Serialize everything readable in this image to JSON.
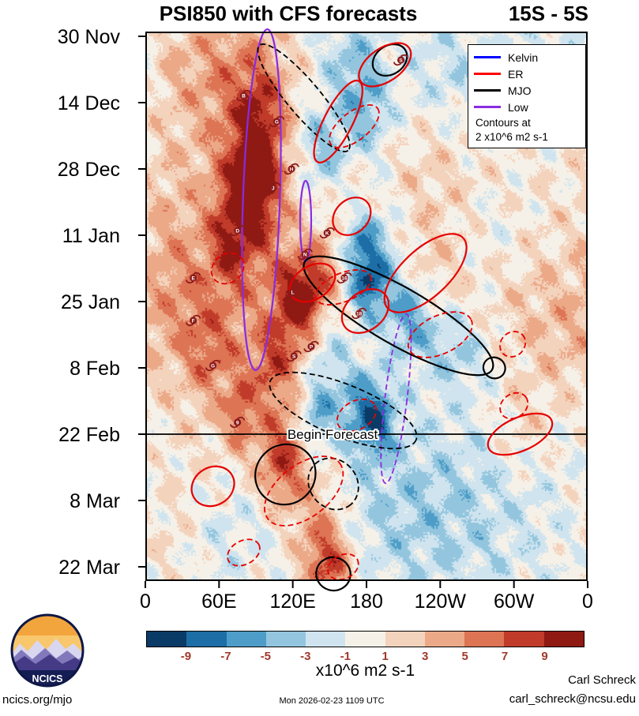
{
  "footer": {
    "website": "ncics.org/mjo",
    "timestamp": "Mon 2026-02-23 1109 UTC",
    "author": "Carl Schreck",
    "email": "carl_schreck@ncsu.edu"
  },
  "logo": {
    "text": "NCICS"
  },
  "chart_data": {
    "type": "heatmap",
    "title": "PSI850 with CFS forecasts",
    "subtitle": "15S - 5S",
    "x_axis": {
      "ticks": [
        "0",
        "60E",
        "120E",
        "180",
        "120W",
        "60W",
        "0"
      ],
      "tick_lons": [
        0,
        60,
        120,
        180,
        240,
        300,
        360
      ],
      "lon_range": [
        0,
        360
      ]
    },
    "y_axis": {
      "ticks": [
        "30 Nov",
        "14 Dec",
        "28 Dec",
        "11 Jan",
        "25 Jan",
        "8 Feb",
        "22 Feb",
        "8 Mar",
        "22 Mar"
      ],
      "tick_days": [
        0,
        14,
        28,
        42,
        56,
        70,
        84,
        98,
        112
      ],
      "day_range": [
        -1,
        115
      ]
    },
    "legend": {
      "items": [
        {
          "label": "Kelvin",
          "color": "#0000ff"
        },
        {
          "label": "ER",
          "color": "#ff0000"
        },
        {
          "label": "MJO",
          "color": "#000000"
        },
        {
          "label": "Low",
          "color": "#8a2be2"
        }
      ],
      "note_line1": "Contours at",
      "note_line2": "2 x10^6 m2 s-1"
    },
    "colorbar": {
      "levels": [
        -9,
        -7,
        -5,
        -3,
        -1,
        1,
        3,
        5,
        7,
        9
      ],
      "tick_labels": [
        "-9",
        "-7",
        "-5",
        "-3",
        "-1",
        "1",
        "3",
        "5",
        "7",
        "9"
      ],
      "tick_color": "#a0392b",
      "colors": [
        "#0a3b66",
        "#1d6ea6",
        "#4e9dc8",
        "#93c6de",
        "#cfe4ef",
        "#f6f1e8",
        "#f4d3bd",
        "#eba988",
        "#dd7454",
        "#c13b2a",
        "#8f1913"
      ],
      "label": "x10^6 m2 s-1"
    },
    "forecast_line": {
      "day": 84,
      "label": "Begin Forecast"
    },
    "contour_colors": {
      "red": "#e60000",
      "black": "#000000",
      "purple": "#8a2be2",
      "blue": "#0000ff"
    },
    "contour_names": {
      "red": "er-contour",
      "black": "mjo-contour",
      "purple": "low-contour",
      "blue": "kelvin-contour"
    },
    "contour_overlays": [
      {
        "c": "purple",
        "s": "solid",
        "lon": 94.5,
        "day": 34.5,
        "rlon": 15,
        "rday": 36,
        "rot": 2
      },
      {
        "c": "purple",
        "s": "solid",
        "lon": 130.5,
        "day": 39,
        "rlon": 4.5,
        "rday": 8.5,
        "rot": 0
      },
      {
        "c": "purple",
        "s": "dashed",
        "lon": 204,
        "day": 76.5,
        "rlon": 9,
        "rday": 18,
        "rot": 7
      },
      {
        "c": "black",
        "s": "dashed",
        "lon": 129,
        "day": 13,
        "rlon": 56,
        "rday": 3.5,
        "rot": 50
      },
      {
        "c": "black",
        "s": "solid",
        "lon": 206,
        "day": 59,
        "rlon": 88,
        "rday": 6,
        "rot": 30
      },
      {
        "c": "black",
        "s": "dashed",
        "lon": 161,
        "day": 79,
        "rlon": 64,
        "rday": 5.5,
        "rot": 22
      },
      {
        "c": "black",
        "s": "solid",
        "lon": 284,
        "day": 70,
        "rlon": 9,
        "rday": 2.2,
        "rot": 25
      },
      {
        "c": "black",
        "s": "solid",
        "lon": 114,
        "day": 92.5,
        "rlon": 24,
        "rday": 6.5,
        "rot": 45
      },
      {
        "c": "black",
        "s": "dashed",
        "lon": 153,
        "day": 94.5,
        "rlon": 22,
        "rday": 5,
        "rot": 50
      },
      {
        "c": "black",
        "s": "solid",
        "lon": 153,
        "day": 113.5,
        "rlon": 14,
        "rday": 3.5,
        "rot": 15
      },
      {
        "c": "black",
        "s": "solid",
        "lon": 199,
        "day": 5,
        "rlon": 15,
        "rday": 3,
        "rot": -35
      },
      {
        "c": "red",
        "s": "solid",
        "lon": 195,
        "day": 6,
        "rlon": 24,
        "rday": 3.5,
        "rot": -35
      },
      {
        "c": "red",
        "s": "solid",
        "lon": 157,
        "day": 18,
        "rlon": 37,
        "rday": 3,
        "rot": -63
      },
      {
        "c": "red",
        "s": "dashed",
        "lon": 170,
        "day": 19,
        "rlon": 24,
        "rday": 3,
        "rot": -38
      },
      {
        "c": "red",
        "s": "solid",
        "lon": 168,
        "day": 38,
        "rlon": 17,
        "rday": 3.5,
        "rot": -44
      },
      {
        "c": "red",
        "s": "dashed",
        "lon": 67,
        "day": 49,
        "rlon": 14,
        "rday": 3,
        "rot": -37
      },
      {
        "c": "red",
        "s": "solid",
        "lon": 136,
        "day": 52,
        "rlon": 20,
        "rday": 3.5,
        "rot": -32
      },
      {
        "c": "red",
        "s": "dashed",
        "lon": 161,
        "day": 53,
        "rlon": 24,
        "rday": 3,
        "rot": -23
      },
      {
        "c": "red",
        "s": "solid",
        "lon": 228,
        "day": 50,
        "rlon": 42,
        "rday": 5,
        "rot": -43
      },
      {
        "c": "red",
        "s": "solid",
        "lon": 179,
        "day": 58,
        "rlon": 21,
        "rday": 4,
        "rot": -39
      },
      {
        "c": "red",
        "s": "dashed",
        "lon": 240,
        "day": 63,
        "rlon": 28,
        "rday": 4,
        "rot": -26
      },
      {
        "c": "red",
        "s": "dashed",
        "lon": 299,
        "day": 65,
        "rlon": 11,
        "rday": 2.5,
        "rot": -44
      },
      {
        "c": "red",
        "s": "dashed",
        "lon": 300,
        "day": 78,
        "rlon": 12,
        "rday": 2.5,
        "rot": -35
      },
      {
        "c": "red",
        "s": "solid",
        "lon": 305,
        "day": 84,
        "rlon": 28,
        "rday": 3.5,
        "rot": -24
      },
      {
        "c": "red",
        "s": "dashed",
        "lon": 172,
        "day": 80,
        "rlon": 17,
        "rday": 3,
        "rot": -29
      },
      {
        "c": "red",
        "s": "solid",
        "lon": 55,
        "day": 95,
        "rlon": 18,
        "rday": 4,
        "rot": -32
      },
      {
        "c": "red",
        "s": "dashed",
        "lon": 129,
        "day": 96,
        "rlon": 37,
        "rday": 5.5,
        "rot": -38
      },
      {
        "c": "red",
        "s": "dashed",
        "lon": 80,
        "day": 109,
        "rlon": 14,
        "rday": 2.5,
        "rot": -28
      },
      {
        "c": "red",
        "s": "dashed",
        "lon": 161,
        "day": 112,
        "rlon": 13,
        "rday": 2.5,
        "rot": -27
      }
    ],
    "storms": [
      {
        "label": "S",
        "lon": 208,
        "day": 5
      },
      {
        "label": "B",
        "lon": 80,
        "day": 12.5
      },
      {
        "label": "G",
        "lon": 107,
        "day": 18
      },
      {
        "label": "H",
        "lon": 119,
        "day": 28
      },
      {
        "label": "J",
        "lon": 104,
        "day": 32
      },
      {
        "label": "D",
        "lon": 75,
        "day": 41
      },
      {
        "label": "K",
        "lon": 148,
        "day": 41.5
      },
      {
        "label": "N",
        "lon": 130,
        "day": 46
      },
      {
        "label": "E",
        "lon": 39,
        "day": 51
      },
      {
        "label": "16",
        "lon": 162,
        "day": 51
      },
      {
        "label": "L",
        "lon": 120,
        "day": 54
      },
      {
        "label": "18",
        "lon": 174,
        "day": 58.5
      },
      {
        "label": "F",
        "lon": 39,
        "day": 60
      },
      {
        "label": "P",
        "lon": 135,
        "day": 65.5
      },
      {
        "label": "S",
        "lon": 121,
        "day": 67.5
      },
      {
        "label": "G",
        "lon": 55,
        "day": 69.5
      },
      {
        "label": "9",
        "lon": 75,
        "day": 81.5
      }
    ],
    "storm_color": "#8b1a1a",
    "field_blobs_format": [
      "lon",
      "day",
      "amplitude",
      "sigma_lon_deg",
      "sigma_day"
    ],
    "field_blobs": [
      [
        70,
        30,
        3.0,
        45,
        28
      ],
      [
        80,
        70,
        2.2,
        40,
        20
      ],
      [
        335,
        4,
        -2.0,
        25,
        8
      ],
      [
        165,
        5,
        -3.5,
        18,
        8
      ],
      [
        185,
        45,
        -4.0,
        18,
        7
      ],
      [
        183,
        53,
        -6.5,
        12,
        5
      ],
      [
        180,
        79,
        -7.0,
        16,
        6
      ],
      [
        140,
        80,
        -5.0,
        10,
        5
      ],
      [
        85,
        29,
        6.5,
        16,
        8
      ],
      [
        95,
        16,
        4.0,
        14,
        7
      ],
      [
        70,
        43,
        5.5,
        12,
        7
      ],
      [
        150,
        49,
        5.0,
        15,
        6
      ],
      [
        120,
        54,
        5.5,
        12,
        6
      ],
      [
        112,
        90,
        7.0,
        14,
        7
      ],
      [
        150,
        112,
        7.0,
        14,
        6
      ],
      [
        340,
        62,
        2.5,
        22,
        10
      ],
      [
        235,
        30,
        2.0,
        28,
        12
      ],
      [
        265,
        100,
        -2.5,
        55,
        16
      ],
      [
        200,
        100,
        -2.0,
        40,
        12
      ],
      [
        150,
        26,
        -3.5,
        12,
        7
      ],
      [
        75,
        8,
        3.0,
        25,
        9
      ],
      [
        180,
        16,
        -4.0,
        14,
        7
      ],
      [
        135,
        22,
        -2.5,
        10,
        6
      ],
      [
        215,
        59,
        -6.0,
        14,
        6
      ],
      [
        188,
        83,
        -3.0,
        8,
        4
      ],
      [
        252,
        66,
        -3.5,
        18,
        6
      ],
      [
        300,
        50,
        2.0,
        28,
        14
      ],
      [
        307,
        83,
        2.0,
        18,
        8
      ],
      [
        35,
        55,
        2.0,
        18,
        10
      ],
      [
        250,
        8,
        -2.5,
        30,
        9
      ],
      [
        170,
        44,
        -5.0,
        12,
        6
      ],
      [
        95,
        35,
        3.5,
        12,
        10
      ],
      [
        112,
        65,
        3.5,
        12,
        6
      ],
      [
        77,
        80,
        4.5,
        8,
        5
      ],
      [
        150,
        68,
        -3.0,
        12,
        6
      ],
      [
        285,
        43,
        -2.0,
        25,
        8
      ],
      [
        70,
        103,
        -2.0,
        30,
        10
      ],
      [
        15,
        45,
        1.5,
        15,
        15
      ],
      [
        20,
        105,
        1.5,
        18,
        10
      ],
      [
        25,
        5,
        1.5,
        20,
        8
      ],
      [
        52,
        67,
        3.0,
        15,
        7
      ],
      [
        132,
        56,
        5.0,
        9,
        5
      ],
      [
        100,
        72,
        3.0,
        12,
        6
      ],
      [
        140,
        103,
        3.5,
        15,
        8
      ],
      [
        165,
        36,
        3.0,
        12,
        6
      ],
      [
        228,
        51,
        2.0,
        25,
        8
      ]
    ],
    "texture_waves": [
      {
        "amp": 1.1,
        "wavelength_deg": 36,
        "period_days": 18,
        "dir": 1,
        "phase": 0.0
      },
      {
        "amp": 0.9,
        "wavelength_deg": 55,
        "period_days": 10,
        "dir": -1,
        "phase": 0.3
      },
      {
        "amp": 0.7,
        "wavelength_deg": 24,
        "period_days": 7,
        "dir": 1,
        "phase": 0.6
      }
    ],
    "speckle_amp": 1.1
  }
}
